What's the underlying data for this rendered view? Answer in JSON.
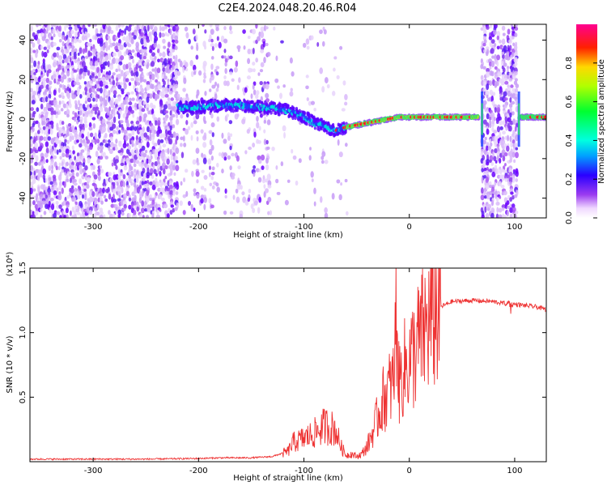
{
  "title": "C2E4.2024.048.20.46.R04",
  "chart_data": [
    {
      "type": "heatmap",
      "title": "C2E4.2024.048.20.46.R04",
      "xlabel": "Height of straight line (km)",
      "ylabel": "Frequency (Hz)",
      "xlim": [
        -360,
        130
      ],
      "ylim": [
        -50,
        48
      ],
      "xticks": [
        -300,
        -200,
        -100,
        0,
        100
      ],
      "xtick_labels": [
        "-300",
        "-200",
        "-100",
        "0",
        "100"
      ],
      "yticks": [
        -40,
        -20,
        0,
        20,
        40
      ],
      "ytick_labels": [
        "-40",
        "-20",
        "0",
        "20",
        "40"
      ],
      "colorbar": {
        "label": "Normalized spectral amplitude",
        "range": [
          0,
          1
        ],
        "ticks": [
          0.0,
          0.2,
          0.4,
          0.6,
          0.8
        ],
        "tick_labels": [
          "0.0",
          "0.2",
          "0.4",
          "0.6",
          "0.8"
        ],
        "colormap": "rainbow (white-violet-blue-cyan-green-yellow-red-pink)"
      },
      "ridge": {
        "description": "dominant frequency ridge",
        "x": [
          -220,
          -200,
          -180,
          -160,
          -140,
          -120,
          -100,
          -90,
          -80,
          -70,
          -60,
          -50,
          -40,
          -30,
          -20,
          -10,
          0,
          20,
          40,
          60,
          66
        ],
        "y": [
          6,
          6,
          7,
          7,
          6,
          5,
          1,
          -2,
          -4,
          -6,
          -4,
          -3,
          -2,
          -1,
          0,
          1,
          1,
          1,
          1,
          1,
          1
        ]
      },
      "ridge_late": {
        "x": [
          104,
          130
        ],
        "y": [
          1,
          1
        ]
      },
      "noise_regions": [
        {
          "x": [
            -360,
            -220
          ],
          "density": "high"
        },
        {
          "x": [
            -220,
            -135
          ],
          "density": "medium"
        },
        {
          "x": [
            -135,
            -60
          ],
          "density": "low"
        },
        {
          "x": [
            68,
            102
          ],
          "density": "high"
        }
      ]
    },
    {
      "type": "line",
      "xlabel": "Height of straight line (km)",
      "ylabel": "SNR (10 * v/v)",
      "scale_label": "(x10⁴)",
      "xlim": [
        -360,
        130
      ],
      "ylim": [
        0,
        1.5
      ],
      "xticks": [
        -300,
        -200,
        -100,
        0,
        100
      ],
      "xtick_labels": [
        "-300",
        "-200",
        "-100",
        "0",
        "100"
      ],
      "yticks": [
        0.5,
        1.0,
        1.5
      ],
      "ytick_labels": [
        "0.5",
        "1.0",
        "1.5"
      ],
      "series_color": "#ee3333",
      "x": [
        -360,
        -300,
        -250,
        -200,
        -180,
        -150,
        -130,
        -115,
        -110,
        -100,
        -90,
        -80,
        -70,
        -65,
        -60,
        -55,
        -50,
        -45,
        -40,
        -35,
        -30,
        -25,
        -20,
        -15,
        -12,
        -10,
        -5,
        0,
        5,
        10,
        15,
        20,
        25,
        30,
        40,
        60,
        80,
        95,
        100,
        110,
        120,
        130
      ],
      "y": [
        0.02,
        0.02,
        0.02,
        0.025,
        0.03,
        0.03,
        0.04,
        0.08,
        0.15,
        0.18,
        0.22,
        0.28,
        0.25,
        0.12,
        0.05,
        0.06,
        0.04,
        0.06,
        0.12,
        0.22,
        0.35,
        0.48,
        0.55,
        0.62,
        1.2,
        0.6,
        0.72,
        0.78,
        0.85,
        0.95,
        1.02,
        1.1,
        1.16,
        1.2,
        1.24,
        1.25,
        1.24,
        1.22,
        1.22,
        1.21,
        1.2,
        1.18
      ]
    }
  ]
}
